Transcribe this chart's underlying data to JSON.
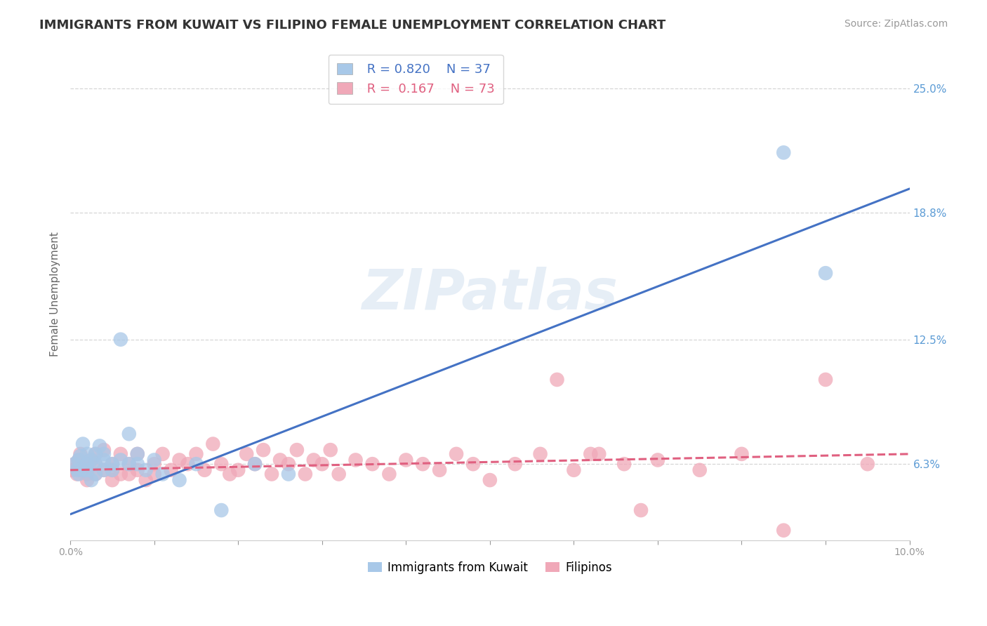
{
  "title": "IMMIGRANTS FROM KUWAIT VS FILIPINO FEMALE UNEMPLOYMENT CORRELATION CHART",
  "source": "Source: ZipAtlas.com",
  "ylabel": "Female Unemployment",
  "ytick_values": [
    0.063,
    0.125,
    0.188,
    0.25
  ],
  "xlim": [
    0.0,
    0.1
  ],
  "ylim": [
    0.025,
    0.27
  ],
  "legend1_R": "0.820",
  "legend1_N": "37",
  "legend2_R": "0.167",
  "legend2_N": "73",
  "blue_color": "#a8c8e8",
  "pink_color": "#f0a8b8",
  "trend_blue": "#4472c4",
  "trend_pink": "#e06080",
  "watermark": "ZIPatlas",
  "blue_scatter_x": [
    0.0005,
    0.0008,
    0.001,
    0.001,
    0.0012,
    0.0015,
    0.0015,
    0.002,
    0.002,
    0.002,
    0.0025,
    0.0025,
    0.003,
    0.003,
    0.003,
    0.0035,
    0.004,
    0.004,
    0.004,
    0.005,
    0.005,
    0.006,
    0.006,
    0.007,
    0.007,
    0.008,
    0.008,
    0.009,
    0.01,
    0.011,
    0.013,
    0.015,
    0.018,
    0.022,
    0.026,
    0.085,
    0.09
  ],
  "blue_scatter_y": [
    0.063,
    0.06,
    0.065,
    0.058,
    0.067,
    0.06,
    0.073,
    0.063,
    0.068,
    0.06,
    0.065,
    0.055,
    0.068,
    0.058,
    0.063,
    0.072,
    0.06,
    0.065,
    0.068,
    0.06,
    0.063,
    0.065,
    0.125,
    0.063,
    0.078,
    0.068,
    0.063,
    0.06,
    0.065,
    0.058,
    0.055,
    0.063,
    0.04,
    0.063,
    0.058,
    0.218,
    0.158
  ],
  "pink_scatter_x": [
    0.0003,
    0.0005,
    0.0008,
    0.001,
    0.001,
    0.0012,
    0.0015,
    0.002,
    0.002,
    0.002,
    0.0025,
    0.003,
    0.003,
    0.003,
    0.004,
    0.004,
    0.005,
    0.005,
    0.005,
    0.006,
    0.006,
    0.007,
    0.007,
    0.008,
    0.008,
    0.009,
    0.01,
    0.01,
    0.011,
    0.012,
    0.013,
    0.014,
    0.015,
    0.016,
    0.017,
    0.018,
    0.019,
    0.02,
    0.021,
    0.022,
    0.023,
    0.024,
    0.025,
    0.026,
    0.027,
    0.028,
    0.029,
    0.03,
    0.031,
    0.032,
    0.034,
    0.036,
    0.038,
    0.04,
    0.042,
    0.044,
    0.046,
    0.048,
    0.05,
    0.053,
    0.056,
    0.06,
    0.063,
    0.066,
    0.07,
    0.075,
    0.08,
    0.085,
    0.09,
    0.095,
    0.058,
    0.062,
    0.068
  ],
  "pink_scatter_y": [
    0.06,
    0.063,
    0.058,
    0.065,
    0.06,
    0.068,
    0.06,
    0.055,
    0.063,
    0.058,
    0.065,
    0.063,
    0.058,
    0.068,
    0.06,
    0.07,
    0.055,
    0.063,
    0.06,
    0.058,
    0.068,
    0.063,
    0.058,
    0.06,
    0.068,
    0.055,
    0.063,
    0.058,
    0.068,
    0.06,
    0.065,
    0.063,
    0.068,
    0.06,
    0.073,
    0.063,
    0.058,
    0.06,
    0.068,
    0.063,
    0.07,
    0.058,
    0.065,
    0.063,
    0.07,
    0.058,
    0.065,
    0.063,
    0.07,
    0.058,
    0.065,
    0.063,
    0.058,
    0.065,
    0.063,
    0.06,
    0.068,
    0.063,
    0.055,
    0.063,
    0.068,
    0.06,
    0.068,
    0.063,
    0.065,
    0.06,
    0.068,
    0.03,
    0.105,
    0.063,
    0.105,
    0.068,
    0.04
  ],
  "blue_trend_x0": 0.0,
  "blue_trend_y0": 0.038,
  "blue_trend_x1": 0.1,
  "blue_trend_y1": 0.2,
  "pink_trend_x0": 0.0,
  "pink_trend_y0": 0.06,
  "pink_trend_x1": 0.1,
  "pink_trend_y1": 0.068
}
